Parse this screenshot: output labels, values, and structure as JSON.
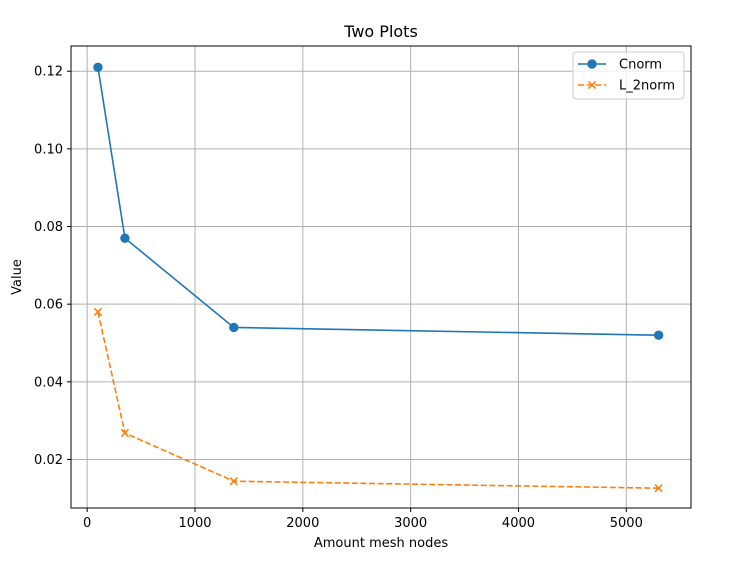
{
  "chart_data": {
    "type": "line",
    "title": "Two Plots",
    "xlabel": "Amount mesh nodes",
    "ylabel": "Value",
    "xlim": [
      -150,
      5600
    ],
    "ylim": [
      0.0075,
      0.1265
    ],
    "xticks": [
      0,
      1000,
      2000,
      3000,
      4000,
      5000
    ],
    "yticks": [
      0.02,
      0.04,
      0.06,
      0.08,
      0.1,
      0.12
    ],
    "ytick_labels": [
      "0.02",
      "0.04",
      "0.06",
      "0.08",
      "0.10",
      "0.12"
    ],
    "grid": true,
    "legend_position": "upper-right",
    "series": [
      {
        "name": "Cnorm",
        "color": "#1f77b4",
        "line_style": "solid",
        "marker": "circle",
        "x": [
          100,
          350,
          1360,
          5300
        ],
        "y": [
          0.121,
          0.077,
          0.054,
          0.052
        ]
      },
      {
        "name": "L_2norm",
        "color": "#ff7f0e",
        "line_style": "dashed",
        "marker": "x",
        "x": [
          100,
          350,
          1360,
          5300
        ],
        "y": [
          0.058,
          0.0268,
          0.0144,
          0.0126
        ]
      }
    ]
  }
}
